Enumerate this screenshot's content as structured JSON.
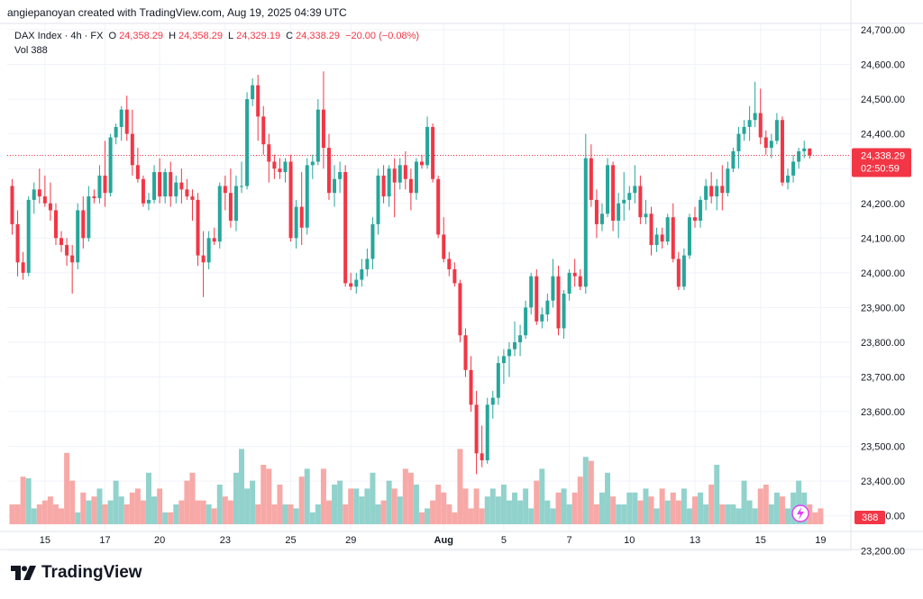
{
  "header": {
    "created_by": "angiepanoyan created with TradingView.com, Aug 19, 2025 04:39 UTC"
  },
  "legend": {
    "symbol": "DAX Index · 4h · FX",
    "o_label": "O",
    "o_value": "24,358.29",
    "h_label": "H",
    "h_value": "24,358.29",
    "l_label": "L",
    "l_value": "24,329.19",
    "c_label": "C",
    "c_value": "24,338.29",
    "change": "−20.00 (−0.08%)",
    "vol_label": "Vol",
    "vol_value": "388"
  },
  "price_tag": {
    "price": "24,338.29",
    "countdown": "02:50:59"
  },
  "vol_tag": "388",
  "brand": {
    "name": "TradingView"
  },
  "colors": {
    "up": "#26a69a",
    "down": "#f23645",
    "vol_up": "#92d2cc",
    "vol_down": "#f7a9a7",
    "axis_text": "#131722",
    "price_tag": "#f23645"
  },
  "chart_data": {
    "type": "candlestick",
    "title": "DAX Index · 4h · FX",
    "y_axis": {
      "side": "right",
      "range": [
        23180,
        24740
      ],
      "ticks": [
        23200,
        23300,
        23400,
        23500,
        23600,
        23700,
        23800,
        23900,
        24000,
        24100,
        24200,
        24300,
        24400,
        24500,
        24600,
        24700
      ],
      "tick_labels": [
        "23,200.00",
        "23,300.00",
        "23,400.00",
        "23,500.00",
        "23,600.00",
        "23,700.00",
        "23,800.00",
        "23,900.00",
        "24,000.00",
        "24,100.00",
        "24,200.00",
        "24,300.00",
        "24,400.00",
        "24,500.00",
        "24,600.00",
        "24,700.00"
      ]
    },
    "x_axis": {
      "labels": [
        {
          "label": "15",
          "bar": 6
        },
        {
          "label": "17",
          "bar": 17
        },
        {
          "label": "20",
          "bar": 27
        },
        {
          "label": "23",
          "bar": 39
        },
        {
          "label": "25",
          "bar": 51
        },
        {
          "label": "29",
          "bar": 62
        },
        {
          "label": "Aug",
          "bar": 79
        },
        {
          "label": "5",
          "bar": 90
        },
        {
          "label": "7",
          "bar": 102
        },
        {
          "label": "10",
          "bar": 113
        },
        {
          "label": "13",
          "bar": 125
        },
        {
          "label": "15",
          "bar": 137
        },
        {
          "label": "19",
          "bar": 148
        }
      ]
    },
    "last_price": 24338.29,
    "ohlc": [
      [
        24250,
        24270,
        24110,
        24140
      ],
      [
        24140,
        24180,
        23990,
        24030
      ],
      [
        24030,
        24060,
        23980,
        24000
      ],
      [
        24000,
        24220,
        23990,
        24210
      ],
      [
        24210,
        24260,
        24170,
        24240
      ],
      [
        24240,
        24300,
        24200,
        24220
      ],
      [
        24220,
        24280,
        24190,
        24200
      ],
      [
        24200,
        24260,
        24150,
        24180
      ],
      [
        24180,
        24200,
        24080,
        24100
      ],
      [
        24100,
        24120,
        24060,
        24080
      ],
      [
        24080,
        24100,
        24020,
        24050
      ],
      [
        24050,
        24080,
        23940,
        24030
      ],
      [
        24030,
        24200,
        24010,
        24180
      ],
      [
        24180,
        24220,
        24070,
        24100
      ],
      [
        24100,
        24250,
        24090,
        24220
      ],
      [
        24220,
        24240,
        24200,
        24215
      ],
      [
        24215,
        24310,
        24200,
        24280
      ],
      [
        24280,
        24380,
        24190,
        24230
      ],
      [
        24230,
        24400,
        24220,
        24390
      ],
      [
        24390,
        24430,
        24370,
        24420
      ],
      [
        24420,
        24480,
        24380,
        24470
      ],
      [
        24470,
        24510,
        24380,
        24400
      ],
      [
        24400,
        24470,
        24280,
        24310
      ],
      [
        24310,
        24360,
        24260,
        24270
      ],
      [
        24270,
        24280,
        24190,
        24200
      ],
      [
        24200,
        24230,
        24180,
        24210
      ],
      [
        24210,
        24310,
        24200,
        24290
      ],
      [
        24290,
        24330,
        24200,
        24220
      ],
      [
        24220,
        24300,
        24200,
        24290
      ],
      [
        24290,
        24320,
        24190,
        24220
      ],
      [
        24220,
        24280,
        24200,
        24260
      ],
      [
        24260,
        24300,
        24200,
        24240
      ],
      [
        24240,
        24270,
        24210,
        24220
      ],
      [
        24220,
        24240,
        24150,
        24210
      ],
      [
        24210,
        24230,
        24020,
        24050
      ],
      [
        24050,
        24120,
        23930,
        24030
      ],
      [
        24030,
        24120,
        24010,
        24100
      ],
      [
        24100,
        24130,
        24080,
        24090
      ],
      [
        24090,
        24260,
        24070,
        24250
      ],
      [
        24250,
        24280,
        24180,
        24230
      ],
      [
        24230,
        24300,
        24130,
        24150
      ],
      [
        24150,
        24280,
        24120,
        24250
      ],
      [
        24250,
        24320,
        24230,
        24250
      ],
      [
        24250,
        24520,
        24240,
        24500
      ],
      [
        24500,
        24560,
        24480,
        24540
      ],
      [
        24540,
        24570,
        24380,
        24450
      ],
      [
        24450,
        24480,
        24340,
        24370
      ],
      [
        24370,
        24400,
        24260,
        24320
      ],
      [
        24320,
        24340,
        24270,
        24300
      ],
      [
        24300,
        24330,
        24270,
        24290
      ],
      [
        24290,
        24330,
        24260,
        24320
      ],
      [
        24320,
        24340,
        24090,
        24100
      ],
      [
        24100,
        24210,
        24070,
        24190
      ],
      [
        24190,
        24290,
        24080,
        24130
      ],
      [
        24130,
        24330,
        24110,
        24310
      ],
      [
        24310,
        24340,
        24270,
        24320
      ],
      [
        24320,
        24500,
        24310,
        24470
      ],
      [
        24470,
        24580,
        24300,
        24360
      ],
      [
        24360,
        24400,
        24210,
        24230
      ],
      [
        24230,
        24310,
        24190,
        24270
      ],
      [
        24270,
        24320,
        24230,
        24290
      ],
      [
        24290,
        24310,
        23960,
        23970
      ],
      [
        23970,
        24000,
        23950,
        23960
      ],
      [
        23960,
        24000,
        23940,
        23980
      ],
      [
        23980,
        24040,
        23960,
        24010
      ],
      [
        24010,
        24070,
        23990,
        24040
      ],
      [
        24040,
        24160,
        24010,
        24140
      ],
      [
        24140,
        24300,
        24110,
        24280
      ],
      [
        24280,
        24310,
        24200,
        24220
      ],
      [
        24220,
        24310,
        24190,
        24300
      ],
      [
        24300,
        24330,
        24160,
        24260
      ],
      [
        24260,
        24330,
        24240,
        24310
      ],
      [
        24310,
        24350,
        24240,
        24270
      ],
      [
        24270,
        24300,
        24180,
        24230
      ],
      [
        24230,
        24330,
        24210,
        24320
      ],
      [
        24320,
        24340,
        24300,
        24310
      ],
      [
        24310,
        24450,
        24300,
        24420
      ],
      [
        24420,
        24430,
        24260,
        24270
      ],
      [
        24270,
        24280,
        24100,
        24110
      ],
      [
        24110,
        24160,
        24030,
        24040
      ],
      [
        24040,
        24060,
        23990,
        24010
      ],
      [
        24010,
        24030,
        23960,
        23970
      ],
      [
        23970,
        23980,
        23800,
        23820
      ],
      [
        23820,
        23840,
        23700,
        23720
      ],
      [
        23720,
        23760,
        23600,
        23620
      ],
      [
        23620,
        23660,
        23420,
        23480
      ],
      [
        23480,
        23560,
        23440,
        23460
      ],
      [
        23460,
        23640,
        23450,
        23620
      ],
      [
        23620,
        23660,
        23580,
        23640
      ],
      [
        23640,
        23760,
        23620,
        23740
      ],
      [
        23740,
        23780,
        23680,
        23760
      ],
      [
        23760,
        23800,
        23700,
        23780
      ],
      [
        23780,
        23860,
        23760,
        23800
      ],
      [
        23800,
        23850,
        23760,
        23820
      ],
      [
        23820,
        23920,
        23810,
        23900
      ],
      [
        23900,
        24000,
        23880,
        23990
      ],
      [
        23990,
        24010,
        23850,
        23860
      ],
      [
        23860,
        23900,
        23840,
        23880
      ],
      [
        23880,
        23940,
        23860,
        23920
      ],
      [
        23920,
        24040,
        23900,
        23990
      ],
      [
        23990,
        24020,
        23820,
        23840
      ],
      [
        23840,
        23950,
        23810,
        23940
      ],
      [
        23940,
        24010,
        23920,
        24000
      ],
      [
        24000,
        24040,
        23960,
        23990
      ],
      [
        23990,
        24010,
        23950,
        23960
      ],
      [
        23960,
        24400,
        23940,
        24330
      ],
      [
        24330,
        24370,
        24190,
        24210
      ],
      [
        24210,
        24240,
        24100,
        24140
      ],
      [
        24140,
        24200,
        24120,
        24170
      ],
      [
        24170,
        24330,
        24160,
        24310
      ],
      [
        24310,
        24320,
        24120,
        24150
      ],
      [
        24150,
        24230,
        24100,
        24200
      ],
      [
        24200,
        24290,
        24150,
        24210
      ],
      [
        24210,
        24250,
        24180,
        24230
      ],
      [
        24230,
        24310,
        24200,
        24250
      ],
      [
        24250,
        24280,
        24140,
        24160
      ],
      [
        24160,
        24210,
        24140,
        24170
      ],
      [
        24170,
        24190,
        24050,
        24080
      ],
      [
        24080,
        24130,
        24060,
        24110
      ],
      [
        24110,
        24130,
        24070,
        24090
      ],
      [
        24090,
        24170,
        24080,
        24160
      ],
      [
        24160,
        24200,
        24030,
        24040
      ],
      [
        24040,
        24060,
        23950,
        23960
      ],
      [
        23960,
        24070,
        23950,
        24050
      ],
      [
        24050,
        24170,
        24040,
        24160
      ],
      [
        24160,
        24190,
        24130,
        24150
      ],
      [
        24150,
        24220,
        24130,
        24210
      ],
      [
        24210,
        24270,
        24180,
        24250
      ],
      [
        24250,
        24290,
        24200,
        24220
      ],
      [
        24220,
        24270,
        24180,
        24250
      ],
      [
        24250,
        24310,
        24180,
        24230
      ],
      [
        24230,
        24320,
        24220,
        24300
      ],
      [
        24300,
        24360,
        24290,
        24350
      ],
      [
        24350,
        24420,
        24300,
        24400
      ],
      [
        24400,
        24440,
        24380,
        24420
      ],
      [
        24420,
        24480,
        24380,
        24440
      ],
      [
        24440,
        24550,
        24420,
        24460
      ],
      [
        24460,
        24530,
        24370,
        24390
      ],
      [
        24390,
        24410,
        24340,
        24360
      ],
      [
        24360,
        24400,
        24330,
        24380
      ],
      [
        24380,
        24460,
        24370,
        24440
      ],
      [
        24440,
        24450,
        24250,
        24260
      ],
      [
        24260,
        24300,
        24240,
        24280
      ],
      [
        24280,
        24340,
        24260,
        24320
      ],
      [
        24320,
        24360,
        24300,
        24350
      ],
      [
        24350,
        24380,
        24330,
        24358
      ],
      [
        24358,
        24358,
        24329,
        24338
      ]
    ],
    "volume": [
      0.25,
      0.25,
      0.6,
      0.58,
      0.2,
      0.25,
      0.3,
      0.35,
      0.25,
      0.2,
      0.9,
      0.55,
      0.15,
      0.4,
      0.3,
      0.35,
      0.45,
      0.25,
      0.3,
      0.55,
      0.35,
      0.25,
      0.4,
      0.45,
      0.3,
      0.65,
      0.35,
      0.45,
      0.15,
      0.15,
      0.25,
      0.3,
      0.55,
      0.65,
      0.3,
      0.3,
      0.25,
      0.2,
      0.5,
      0.35,
      0.3,
      0.65,
      0.95,
      0.45,
      0.55,
      0.25,
      0.75,
      0.7,
      0.25,
      0.5,
      0.25,
      0.25,
      0.2,
      0.6,
      0.7,
      0.15,
      0.25,
      0.7,
      0.3,
      0.5,
      0.55,
      0.25,
      0.45,
      0.45,
      0.35,
      0.45,
      0.65,
      0.25,
      0.3,
      0.55,
      0.45,
      0.35,
      0.7,
      0.65,
      0.5,
      0.15,
      0.2,
      0.3,
      0.5,
      0.4,
      0.25,
      0.15,
      0.95,
      0.45,
      0.2,
      0.45,
      0.2,
      0.35,
      0.45,
      0.35,
      0.5,
      0.3,
      0.4,
      0.3,
      0.45,
      0.2,
      0.55,
      0.7,
      0.3,
      0.2,
      0.4,
      0.45,
      0.25,
      0.4,
      0.6,
      0.85,
      0.8,
      0.25,
      0.4,
      0.65,
      0.35,
      0.25,
      0.25,
      0.4,
      0.4,
      0.3,
      0.45,
      0.35,
      0.2,
      0.45,
      0.3,
      0.4,
      0.3,
      0.45,
      0.2,
      0.35,
      0.4,
      0.25,
      0.5,
      0.75,
      0.25,
      0.25,
      0.25,
      0.2,
      0.55,
      0.3,
      0.2,
      0.45,
      0.5,
      0.25,
      0.4,
      0.35,
      0.2,
      0.4,
      0.55,
      0.4,
      0.25,
      0.15,
      0.2
    ]
  }
}
